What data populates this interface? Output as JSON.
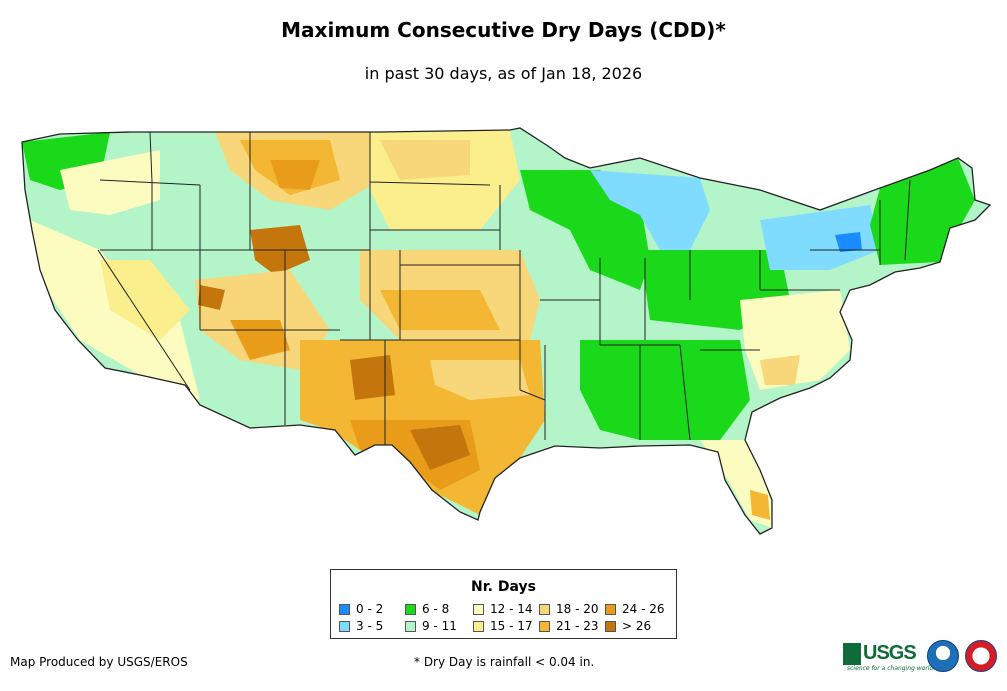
{
  "header": {
    "title": "Maximum Consecutive Dry Days (CDD)*",
    "subtitle": "in past 30 days, as of Jan 18, 2026"
  },
  "legend": {
    "title": "Nr. Days",
    "items": [
      {
        "label": "0 - 2",
        "color": "#1a8cff"
      },
      {
        "label": "3 - 5",
        "color": "#7fdcff"
      },
      {
        "label": "6 - 8",
        "color": "#1ad91a"
      },
      {
        "label": "9 - 11",
        "color": "#b3f5c8"
      },
      {
        "label": "12 - 14",
        "color": "#fcfcc0"
      },
      {
        "label": "15 - 17",
        "color": "#fbee8c"
      },
      {
        "label": "18 - 20",
        "color": "#f8d77a"
      },
      {
        "label": "21 - 23",
        "color": "#f3b733"
      },
      {
        "label": "24 - 26",
        "color": "#e89c1a"
      },
      {
        "label": "> 26",
        "color": "#c4760c"
      }
    ]
  },
  "footer": {
    "credit": "Map Produced by USGS/EROS",
    "footnote": "* Dry Day is rainfall < 0.04 in."
  },
  "logos": {
    "usgs_text": "USGS",
    "usgs_tagline": "science for a changing world",
    "noaa": "noaa-logo-icon",
    "nws": "nws-logo-icon"
  },
  "map": {
    "region": "Contiguous United States",
    "colors": {
      "land_base": "#b3f5c8",
      "border": "#222222"
    }
  }
}
